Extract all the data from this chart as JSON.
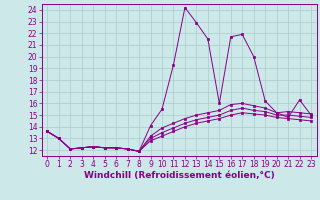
{
  "xlabel": "Windchill (Refroidissement éolien,°C)",
  "background_color": "#cce8e8",
  "grid_color": "#aacccc",
  "line_color": "#880088",
  "xlim": [
    -0.5,
    23.5
  ],
  "ylim": [
    11.5,
    24.5
  ],
  "yticks": [
    12,
    13,
    14,
    15,
    16,
    17,
    18,
    19,
    20,
    21,
    22,
    23,
    24
  ],
  "xticks": [
    0,
    1,
    2,
    3,
    4,
    5,
    6,
    7,
    8,
    9,
    10,
    11,
    12,
    13,
    14,
    15,
    16,
    17,
    18,
    19,
    20,
    21,
    22,
    23
  ],
  "lines": [
    {
      "x": [
        0,
        1,
        2,
        3,
        4,
        5,
        6,
        7,
        8,
        9,
        10,
        11,
        12,
        13,
        14,
        15,
        16,
        17,
        18,
        19,
        20,
        21,
        22,
        23
      ],
      "y": [
        13.6,
        13.0,
        12.1,
        12.2,
        12.3,
        12.2,
        12.2,
        12.1,
        11.9,
        14.1,
        15.5,
        19.3,
        24.2,
        22.9,
        21.5,
        16.0,
        21.7,
        21.9,
        20.0,
        16.2,
        15.2,
        14.8,
        16.3,
        15.0
      ]
    },
    {
      "x": [
        0,
        1,
        2,
        3,
        4,
        5,
        6,
        7,
        8,
        9,
        10,
        11,
        12,
        13,
        14,
        15,
        16,
        17,
        18,
        19,
        20,
        21,
        22,
        23
      ],
      "y": [
        13.6,
        13.0,
        12.1,
        12.2,
        12.3,
        12.2,
        12.2,
        12.1,
        11.9,
        13.2,
        13.9,
        14.3,
        14.7,
        15.0,
        15.2,
        15.4,
        15.9,
        16.0,
        15.8,
        15.6,
        15.2,
        15.3,
        15.2,
        15.1
      ]
    },
    {
      "x": [
        0,
        1,
        2,
        3,
        4,
        5,
        6,
        7,
        8,
        9,
        10,
        11,
        12,
        13,
        14,
        15,
        16,
        17,
        18,
        19,
        20,
        21,
        22,
        23
      ],
      "y": [
        13.6,
        13.0,
        12.1,
        12.2,
        12.3,
        12.2,
        12.2,
        12.1,
        11.9,
        13.0,
        13.5,
        13.9,
        14.3,
        14.6,
        14.8,
        15.0,
        15.4,
        15.6,
        15.4,
        15.3,
        15.0,
        15.0,
        14.9,
        14.8
      ]
    },
    {
      "x": [
        0,
        1,
        2,
        3,
        4,
        5,
        6,
        7,
        8,
        9,
        10,
        11,
        12,
        13,
        14,
        15,
        16,
        17,
        18,
        19,
        20,
        21,
        22,
        23
      ],
      "y": [
        13.6,
        13.0,
        12.1,
        12.2,
        12.3,
        12.2,
        12.2,
        12.1,
        11.9,
        12.8,
        13.2,
        13.6,
        14.0,
        14.3,
        14.5,
        14.7,
        15.0,
        15.2,
        15.1,
        15.0,
        14.8,
        14.7,
        14.6,
        14.5
      ]
    }
  ],
  "tick_fontsize": 5.5,
  "xlabel_fontsize": 6.5
}
